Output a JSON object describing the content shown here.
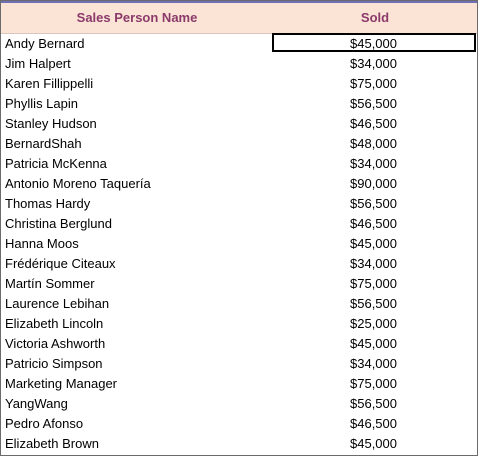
{
  "header": {
    "name": "Sales Person Name",
    "sold": "Sold"
  },
  "rows": [
    {
      "name": "Andy Bernard",
      "sold": "$45,000"
    },
    {
      "name": "Jim Halpert",
      "sold": "$34,000"
    },
    {
      "name": "Karen Fillippelli",
      "sold": "$75,000"
    },
    {
      "name": "Phyllis Lapin",
      "sold": "$56,500"
    },
    {
      "name": "Stanley Hudson",
      "sold": "$46,500"
    },
    {
      "name": "BernardShah",
      "sold": "$48,000"
    },
    {
      "name": "Patricia McKenna",
      "sold": "$34,000"
    },
    {
      "name": "Antonio Moreno Taquería",
      "sold": "$90,000"
    },
    {
      "name": "Thomas Hardy",
      "sold": "$56,500"
    },
    {
      "name": "Christina Berglund",
      "sold": "$46,500"
    },
    {
      "name": "Hanna Moos",
      "sold": "$45,000"
    },
    {
      "name": "Frédérique Citeaux",
      "sold": "$34,000"
    },
    {
      "name": "Martín Sommer",
      "sold": "$75,000"
    },
    {
      "name": "Laurence Lebihan",
      "sold": "$56,500"
    },
    {
      "name": "Elizabeth Lincoln",
      "sold": "$25,000"
    },
    {
      "name": "Victoria Ashworth",
      "sold": "$45,000"
    },
    {
      "name": "Patricio Simpson",
      "sold": "$34,000"
    },
    {
      "name": "Marketing Manager",
      "sold": "$75,000"
    },
    {
      "name": "YangWang",
      "sold": "$56,500"
    },
    {
      "name": "Pedro Afonso",
      "sold": "$46,500"
    },
    {
      "name": "Elizabeth Brown",
      "sold": "$45,000"
    }
  ],
  "selection": {
    "row": 0,
    "column": "sold"
  },
  "colors": {
    "header_bg": "#fbe4d6",
    "header_text": "#8b3a6a",
    "top_accent": "#6f6fb8",
    "cell_text": "#000000"
  }
}
